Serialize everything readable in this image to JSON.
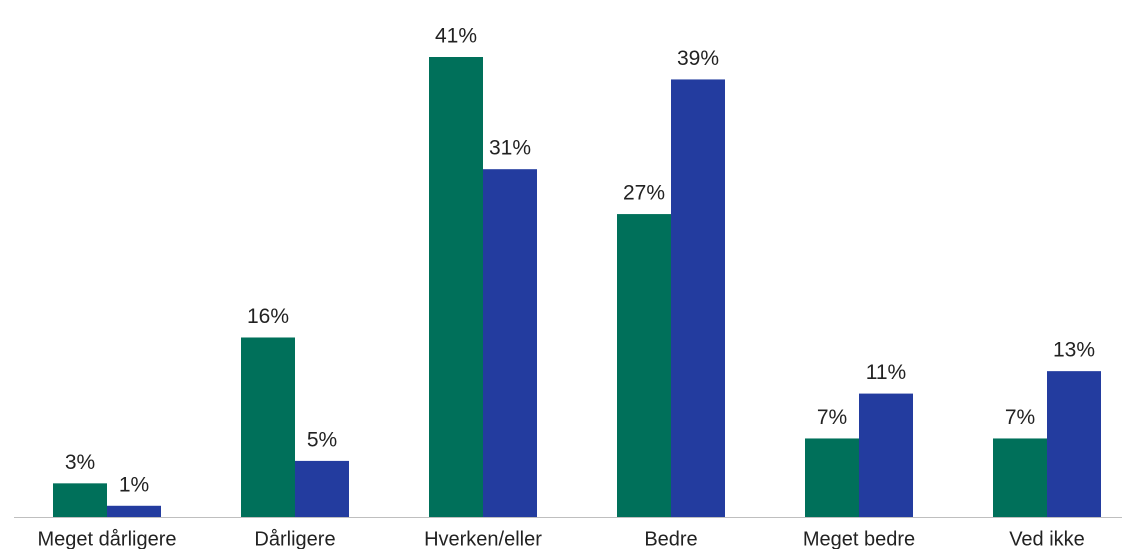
{
  "chart_data": {
    "type": "bar",
    "categories": [
      "Meget dårligere",
      "Dårligere",
      "Hverken/eller",
      "Bedre",
      "Meget bedre",
      "Ved ikke"
    ],
    "series": [
      {
        "color": "#00705a",
        "values": [
          3,
          16,
          41,
          27,
          7,
          7
        ],
        "value_labels": [
          "3%",
          "16%",
          "41%",
          "27%",
          "7%",
          "7%"
        ]
      },
      {
        "color": "#233c9f",
        "values": [
          1,
          5,
          31,
          39,
          11,
          13
        ],
        "value_labels": [
          "1%",
          "5%",
          "31%",
          "39%",
          "11%",
          "13%"
        ]
      }
    ]
  }
}
